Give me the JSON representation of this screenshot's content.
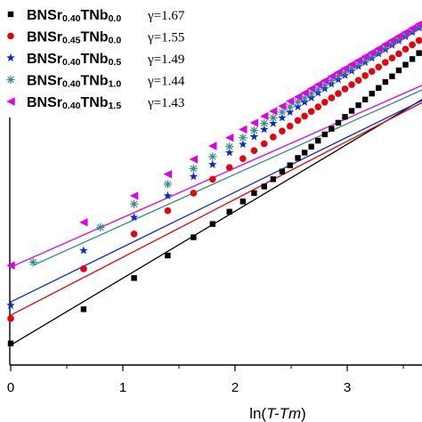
{
  "chart_data": {
    "type": "scatter",
    "xlabel": "ln(T-Tm)",
    "ylabel": "",
    "x_ticks": [
      "0",
      "1",
      "2",
      "3"
    ],
    "xlim": [
      -0.05,
      3.7
    ],
    "ylim": [
      0,
      11
    ],
    "grid": false,
    "legend_position": "top-left",
    "series": [
      {
        "name": "BNSr0.40TNb0.0",
        "main": "BNSr",
        "sub1": "0.40",
        "mid": "TNb",
        "sub2": "0.0",
        "gamma_label": "γ=1.67",
        "marker": "square",
        "color": "#000000",
        "fit": {
          "intercept": 0.6,
          "slope": 2.62
        },
        "points": [
          [
            0.0,
            0.65
          ],
          [
            0.65,
            1.68
          ],
          [
            1.1,
            2.62
          ],
          [
            1.4,
            3.3
          ],
          [
            1.63,
            3.85
          ],
          [
            1.8,
            4.25
          ],
          [
            1.95,
            4.62
          ],
          [
            2.07,
            4.93
          ],
          [
            2.17,
            5.18
          ],
          [
            2.26,
            5.38
          ],
          [
            2.34,
            5.6
          ],
          [
            2.42,
            5.83
          ],
          [
            2.49,
            6.02
          ],
          [
            2.56,
            6.24
          ],
          [
            2.62,
            6.4
          ],
          [
            2.68,
            6.58
          ],
          [
            2.74,
            6.76
          ],
          [
            2.8,
            6.95
          ],
          [
            2.86,
            7.12
          ],
          [
            2.92,
            7.3
          ],
          [
            2.98,
            7.48
          ],
          [
            3.04,
            7.66
          ],
          [
            3.1,
            7.83
          ],
          [
            3.16,
            8.0
          ],
          [
            3.22,
            8.18
          ],
          [
            3.28,
            8.35
          ],
          [
            3.34,
            8.53
          ],
          [
            3.4,
            8.7
          ],
          [
            3.46,
            8.88
          ],
          [
            3.52,
            9.05
          ],
          [
            3.58,
            9.22
          ],
          [
            3.64,
            9.4
          ],
          [
            3.7,
            9.58
          ]
        ]
      },
      {
        "name": "BNSr0.45TNb0.0",
        "main": "BNSr",
        "sub1": "0.45",
        "mid": "TNb",
        "sub2": "0.0",
        "gamma_label": "γ=1.55",
        "marker": "circle",
        "color": "#e8000b",
        "fit": {
          "intercept": 1.5,
          "slope": 2.27
        },
        "points": [
          [
            0.0,
            1.4
          ],
          [
            0.65,
            2.9
          ],
          [
            1.1,
            3.95
          ],
          [
            1.4,
            4.65
          ],
          [
            1.63,
            5.18
          ],
          [
            1.8,
            5.6
          ],
          [
            1.95,
            5.95
          ],
          [
            2.07,
            6.22
          ],
          [
            2.17,
            6.46
          ],
          [
            2.26,
            6.67
          ],
          [
            2.34,
            6.87
          ],
          [
            2.42,
            7.05
          ],
          [
            2.49,
            7.2
          ],
          [
            2.56,
            7.37
          ],
          [
            2.62,
            7.5
          ],
          [
            2.68,
            7.64
          ],
          [
            2.74,
            7.78
          ],
          [
            2.8,
            7.92
          ],
          [
            2.86,
            8.05
          ],
          [
            2.92,
            8.18
          ],
          [
            2.98,
            8.32
          ],
          [
            3.04,
            8.45
          ],
          [
            3.1,
            8.58
          ],
          [
            3.16,
            8.72
          ],
          [
            3.22,
            8.85
          ],
          [
            3.28,
            8.98
          ],
          [
            3.34,
            9.12
          ],
          [
            3.4,
            9.25
          ],
          [
            3.46,
            9.38
          ],
          [
            3.52,
            9.52
          ],
          [
            3.58,
            9.65
          ],
          [
            3.64,
            9.78
          ],
          [
            3.7,
            9.92
          ]
        ]
      },
      {
        "name": "BNSr0.40TNb0.5",
        "main": "BNSr",
        "sub1": "0.40",
        "mid": "TNb",
        "sub2": "0.5",
        "gamma_label": "γ=1.49",
        "marker": "star",
        "color": "#0a2ad0",
        "fit": {
          "intercept": 1.9,
          "slope": 2.15
        },
        "points": [
          [
            0.0,
            1.8
          ],
          [
            0.65,
            3.45
          ],
          [
            1.1,
            4.45
          ],
          [
            1.4,
            5.1
          ],
          [
            1.63,
            5.68
          ],
          [
            1.8,
            6.04
          ],
          [
            1.95,
            6.4
          ],
          [
            2.07,
            6.65
          ],
          [
            2.17,
            6.88
          ],
          [
            2.26,
            7.1
          ],
          [
            2.34,
            7.28
          ],
          [
            2.42,
            7.45
          ],
          [
            2.49,
            7.62
          ],
          [
            2.56,
            7.78
          ],
          [
            2.62,
            7.92
          ],
          [
            2.68,
            8.05
          ],
          [
            2.74,
            8.2
          ],
          [
            2.8,
            8.33
          ],
          [
            2.86,
            8.47
          ],
          [
            2.92,
            8.6
          ],
          [
            2.98,
            8.73
          ],
          [
            3.04,
            8.86
          ],
          [
            3.1,
            9.0
          ],
          [
            3.16,
            9.12
          ],
          [
            3.22,
            9.25
          ],
          [
            3.28,
            9.38
          ],
          [
            3.34,
            9.51
          ],
          [
            3.4,
            9.64
          ],
          [
            3.46,
            9.77
          ],
          [
            3.52,
            9.9
          ],
          [
            3.58,
            10.03
          ],
          [
            3.64,
            10.16
          ],
          [
            3.7,
            10.29
          ]
        ]
      },
      {
        "name": "BNSr0.40TNb1.0",
        "main": "BNSr",
        "sub1": "0.40",
        "mid": "TNb",
        "sub2": "1.0",
        "gamma_label": "γ=1.44",
        "marker": "asterisk",
        "color": "#2f8f86",
        "fit": {
          "intercept": 2.7,
          "slope": 1.98
        },
        "points": [
          [
            0.2,
            3.1
          ],
          [
            0.8,
            4.15
          ],
          [
            1.1,
            4.85
          ],
          [
            1.4,
            5.45
          ],
          [
            1.63,
            5.92
          ],
          [
            1.8,
            6.28
          ],
          [
            1.95,
            6.58
          ],
          [
            2.07,
            6.85
          ],
          [
            2.17,
            7.07
          ],
          [
            2.26,
            7.28
          ],
          [
            2.34,
            7.45
          ],
          [
            2.42,
            7.62
          ],
          [
            2.49,
            7.78
          ],
          [
            2.56,
            7.93
          ],
          [
            2.62,
            8.05
          ],
          [
            2.68,
            8.18
          ],
          [
            2.74,
            8.31
          ],
          [
            2.8,
            8.44
          ],
          [
            2.86,
            8.57
          ],
          [
            2.92,
            8.7
          ],
          [
            2.98,
            8.82
          ],
          [
            3.04,
            8.95
          ],
          [
            3.1,
            9.07
          ],
          [
            3.16,
            9.2
          ],
          [
            3.22,
            9.33
          ],
          [
            3.28,
            9.45
          ],
          [
            3.34,
            9.58
          ],
          [
            3.4,
            9.7
          ],
          [
            3.46,
            9.83
          ],
          [
            3.52,
            9.96
          ],
          [
            3.58,
            10.08
          ],
          [
            3.64,
            10.21
          ],
          [
            3.7,
            10.34
          ]
        ]
      },
      {
        "name": "BNSr0.40TNb1.5",
        "main": "BNSr",
        "sub1": "0.40",
        "mid": "TNb",
        "sub2": "1.5",
        "gamma_label": "γ=1.43",
        "marker": "triangle-left",
        "color": "#e000e8",
        "fit": {
          "intercept": 2.95,
          "slope": 1.94
        },
        "points": [
          [
            0.0,
            3.0
          ],
          [
            0.65,
            4.3
          ],
          [
            1.1,
            5.1
          ],
          [
            1.4,
            5.75
          ],
          [
            1.63,
            6.2
          ],
          [
            1.8,
            6.6
          ],
          [
            1.95,
            6.85
          ],
          [
            2.07,
            7.1
          ],
          [
            2.17,
            7.3
          ],
          [
            2.26,
            7.5
          ],
          [
            2.34,
            7.65
          ],
          [
            2.42,
            7.8
          ],
          [
            2.49,
            7.95
          ],
          [
            2.56,
            8.08
          ],
          [
            2.62,
            8.2
          ],
          [
            2.68,
            8.33
          ],
          [
            2.74,
            8.45
          ],
          [
            2.8,
            8.57
          ],
          [
            2.86,
            8.7
          ],
          [
            2.92,
            8.82
          ],
          [
            2.98,
            8.94
          ],
          [
            3.04,
            9.06
          ],
          [
            3.1,
            9.18
          ],
          [
            3.16,
            9.3
          ],
          [
            3.22,
            9.42
          ],
          [
            3.28,
            9.54
          ],
          [
            3.34,
            9.67
          ],
          [
            3.4,
            9.79
          ],
          [
            3.46,
            9.91
          ],
          [
            3.52,
            10.03
          ],
          [
            3.58,
            10.15
          ],
          [
            3.64,
            10.27
          ],
          [
            3.7,
            10.4
          ]
        ]
      }
    ]
  }
}
